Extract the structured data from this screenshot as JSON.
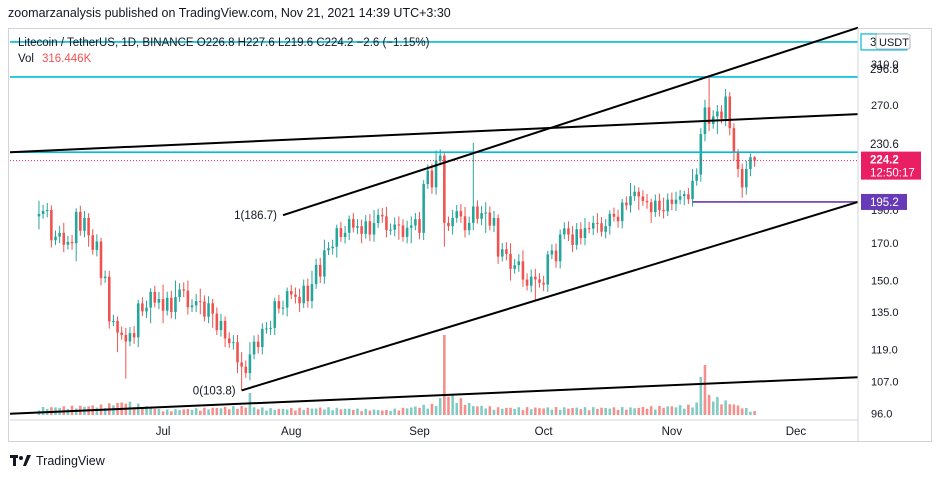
{
  "header": {
    "publisher_line": "zoomarzanalysis published on TradingView.com, Nov 21, 2021 14:39 UTC+3:30"
  },
  "footer": {
    "brand": "TradingView",
    "logo_icon": "tradingview-logo-icon"
  },
  "chart_data": {
    "type": "candlestick",
    "symbol_line": "Litecoin / TetherUS, 1D, BINANCE  O226.8  H227.6  L219.6  C224.2  −2.6 (−1.15%)",
    "ohlc": {
      "open": 226.8,
      "high": 227.6,
      "low": 219.6,
      "close": 224.2,
      "change": "−2.6 (−1.15%)"
    },
    "volume_label": "Vol",
    "volume_value": "316.446K",
    "currency_label": "USDT",
    "y_scale": "log",
    "ylim": [
      94,
      345
    ],
    "y_ticks": [
      "96.0",
      "107.0",
      "119.0",
      "135.0",
      "150.0",
      "170.0",
      "190.0",
      "270.0",
      "310.0"
    ],
    "x_ticks": [
      "Jul",
      "Aug",
      "Sep",
      "Oct",
      "Nov",
      "Dec"
    ],
    "last_price": {
      "value": "224.2",
      "countdown": "12:50:17",
      "color": "#e91e63"
    },
    "horizontal_levels": [
      {
        "value": 333.7,
        "label": "333.7",
        "color": "#00bcd4"
      },
      {
        "value": 296.8,
        "label": "296.8",
        "color": "#00bcd4"
      },
      {
        "value": 230.6,
        "label": "230.6",
        "color": "#00bcd4"
      },
      {
        "value": 195.2,
        "label": "195.2",
        "color": "#673ab7"
      }
    ],
    "annotations": [
      {
        "text": "1(186.7)",
        "value": 186.7,
        "date": "2021-07-30"
      },
      {
        "text": "0(103.8)",
        "value": 103.8,
        "date": "2021-07-20"
      }
    ],
    "trendlines": [
      {
        "start": [
          "2021-07-30",
          186.7
        ],
        "end": [
          "2021-12-16",
          350.0
        ]
      },
      {
        "start": [
          "2021-07-20",
          103.8
        ],
        "end": [
          "2021-12-16",
          195.2
        ]
      },
      {
        "start": [
          "2021-05-25",
          230.6
        ],
        "end": [
          "2021-12-16",
          262.0
        ]
      },
      {
        "start": [
          "2021-05-25",
          96.0
        ],
        "end": [
          "2021-12-16",
          108.5
        ]
      }
    ],
    "colors": {
      "up": "#26a69a",
      "down": "#ef5350",
      "vol_up": "#80cbc4",
      "vol_down": "#f48f8c",
      "line": "#000000"
    },
    "price_path": [
      [
        "2021-06-01",
        186,
        196,
        178,
        190
      ],
      [
        "2021-06-04",
        190,
        193,
        170,
        176
      ],
      [
        "2021-06-07",
        176,
        182,
        165,
        170
      ],
      [
        "2021-06-10",
        170,
        190,
        160,
        185
      ],
      [
        "2021-06-13",
        185,
        188,
        168,
        171
      ],
      [
        "2021-06-16",
        171,
        172,
        150,
        152
      ],
      [
        "2021-06-18",
        152,
        155,
        128,
        131
      ],
      [
        "2021-06-20",
        131,
        133,
        118,
        125
      ],
      [
        "2021-06-22",
        125,
        128,
        108,
        124
      ],
      [
        "2021-06-25",
        124,
        140,
        120,
        137
      ],
      [
        "2021-06-28",
        137,
        145,
        130,
        141
      ],
      [
        "2021-07-01",
        141,
        148,
        130,
        135
      ],
      [
        "2021-07-04",
        135,
        150,
        133,
        145
      ],
      [
        "2021-07-07",
        145,
        150,
        136,
        140
      ],
      [
        "2021-07-10",
        140,
        146,
        134,
        139
      ],
      [
        "2021-07-13",
        139,
        141,
        128,
        131
      ],
      [
        "2021-07-16",
        131,
        133,
        120,
        122
      ],
      [
        "2021-07-19",
        122,
        125,
        110,
        114
      ],
      [
        "2021-07-20",
        114,
        118,
        103.8,
        110
      ],
      [
        "2021-07-22",
        110,
        122,
        108,
        120
      ],
      [
        "2021-07-25",
        120,
        130,
        118,
        128
      ],
      [
        "2021-07-28",
        128,
        140,
        125,
        137
      ],
      [
        "2021-07-31",
        137,
        145,
        133,
        142
      ],
      [
        "2021-08-03",
        142,
        146,
        135,
        140
      ],
      [
        "2021-08-06",
        140,
        155,
        138,
        152
      ],
      [
        "2021-08-09",
        152,
        172,
        150,
        168
      ],
      [
        "2021-08-12",
        168,
        180,
        162,
        176
      ],
      [
        "2021-08-15",
        176,
        186,
        172,
        180
      ],
      [
        "2021-08-18",
        180,
        184,
        170,
        175
      ],
      [
        "2021-08-21",
        175,
        190,
        173,
        186
      ],
      [
        "2021-08-24",
        186,
        192,
        178,
        181
      ],
      [
        "2021-08-27",
        181,
        186,
        172,
        179
      ],
      [
        "2021-08-30",
        179,
        186,
        170,
        176
      ],
      [
        "2021-09-02",
        176,
        210,
        175,
        205
      ],
      [
        "2021-09-05",
        205,
        232,
        203,
        228
      ],
      [
        "2021-09-07",
        228,
        229,
        168,
        180
      ],
      [
        "2021-09-09",
        180,
        190,
        175,
        186
      ],
      [
        "2021-09-12",
        186,
        192,
        178,
        182
      ],
      [
        "2021-09-14",
        182,
        238,
        180,
        188
      ],
      [
        "2021-09-17",
        188,
        195,
        176,
        185
      ],
      [
        "2021-09-20",
        185,
        186,
        160,
        164
      ],
      [
        "2021-09-23",
        164,
        170,
        150,
        160
      ],
      [
        "2021-09-26",
        160,
        166,
        148,
        152
      ],
      [
        "2021-09-29",
        152,
        156,
        140,
        148
      ],
      [
        "2021-10-02",
        148,
        165,
        146,
        160
      ],
      [
        "2021-10-05",
        160,
        178,
        158,
        175
      ],
      [
        "2021-10-08",
        175,
        180,
        168,
        173
      ],
      [
        "2021-10-11",
        173,
        185,
        170,
        182
      ],
      [
        "2021-10-14",
        182,
        188,
        176,
        180
      ],
      [
        "2021-10-17",
        180,
        186,
        175,
        183
      ],
      [
        "2021-10-20",
        183,
        196,
        180,
        193
      ],
      [
        "2021-10-22",
        193,
        208,
        190,
        202
      ],
      [
        "2021-10-24",
        202,
        205,
        190,
        195
      ],
      [
        "2021-10-27",
        195,
        197,
        182,
        190
      ],
      [
        "2021-10-30",
        190,
        198,
        186,
        194
      ],
      [
        "2021-11-02",
        194,
        202,
        190,
        199
      ],
      [
        "2021-11-04",
        199,
        202,
        193,
        197
      ],
      [
        "2021-11-06",
        197,
        218,
        196,
        214
      ],
      [
        "2021-11-08",
        214,
        250,
        212,
        245
      ],
      [
        "2021-11-09",
        245,
        275,
        240,
        268
      ],
      [
        "2021-11-10",
        268,
        296,
        250,
        260
      ],
      [
        "2021-11-12",
        260,
        270,
        245,
        258
      ],
      [
        "2021-11-14",
        258,
        285,
        255,
        278
      ],
      [
        "2021-11-15",
        278,
        282,
        245,
        250
      ],
      [
        "2021-11-16",
        250,
        254,
        225,
        230
      ],
      [
        "2021-11-17",
        230,
        233,
        212,
        218
      ],
      [
        "2021-11-18",
        218,
        222,
        198,
        205
      ],
      [
        "2021-11-19",
        205,
        224,
        202,
        218
      ],
      [
        "2021-11-20",
        218,
        227,
        214,
        226
      ],
      [
        "2021-11-21",
        226.8,
        227.6,
        219.6,
        224.2
      ]
    ],
    "volume_path": [
      [
        "2021-06-01",
        0.3
      ],
      [
        "2021-06-16",
        0.4
      ],
      [
        "2021-06-22",
        0.55
      ],
      [
        "2021-07-01",
        0.2
      ],
      [
        "2021-07-20",
        0.35
      ],
      [
        "2021-07-28",
        0.25
      ],
      [
        "2021-08-09",
        0.3
      ],
      [
        "2021-08-24",
        0.2
      ],
      [
        "2021-09-05",
        0.45
      ],
      [
        "2021-09-07",
        0.95
      ],
      [
        "2021-09-14",
        0.4
      ],
      [
        "2021-09-20",
        0.3
      ],
      [
        "2021-10-05",
        0.3
      ],
      [
        "2021-10-22",
        0.3
      ],
      [
        "2021-11-06",
        0.4
      ],
      [
        "2021-11-10",
        0.8
      ],
      [
        "2021-11-16",
        0.45
      ],
      [
        "2021-11-21",
        0.15
      ]
    ],
    "volume_spikes": [
      {
        "date": "2021-09-07",
        "value": 2.0,
        "dir": "down"
      },
      {
        "date": "2021-11-09",
        "value": 1.25,
        "dir": "down"
      },
      {
        "date": "2021-11-08",
        "value": 0.95,
        "dir": "up"
      },
      {
        "date": "2021-07-22",
        "value": 0.55,
        "dir": "up"
      }
    ]
  }
}
